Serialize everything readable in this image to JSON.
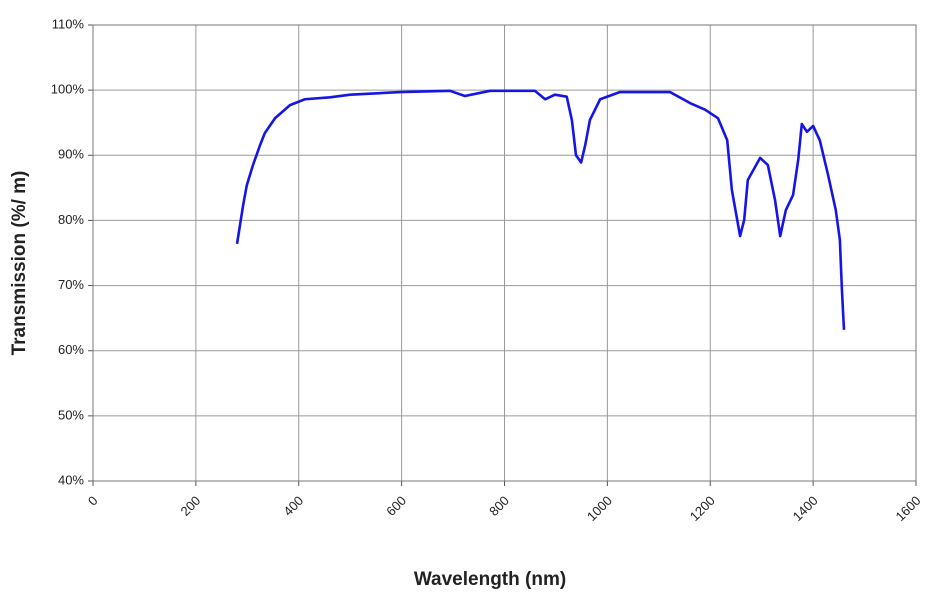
{
  "chart_data": {
    "type": "line",
    "x_label": "Wavelength (nm)",
    "y_label": "Transmission (%/ m)",
    "x": [
      280,
      292,
      299,
      311,
      325,
      334,
      354,
      383,
      412,
      461,
      500,
      597,
      694,
      723,
      772,
      859,
      879,
      898,
      921,
      931,
      939,
      949,
      957,
      966,
      986,
      1024,
      1122,
      1161,
      1190,
      1215,
      1233,
      1242,
      1258,
      1266,
      1273,
      1297,
      1312,
      1326,
      1336,
      1347,
      1361,
      1371,
      1378,
      1388,
      1400,
      1413,
      1429,
      1444,
      1452,
      1456,
      1460
    ],
    "values": [
      76.4,
      82.4,
      85.4,
      88.5,
      91.6,
      93.4,
      95.7,
      97.7,
      98.6,
      98.9,
      99.3,
      99.7,
      99.9,
      99.1,
      99.9,
      99.9,
      98.6,
      99.3,
      99.0,
      95.4,
      90.0,
      88.9,
      91.6,
      95.4,
      98.6,
      99.7,
      99.7,
      98.0,
      97.0,
      95.7,
      92.3,
      84.7,
      77.6,
      80.1,
      86.2,
      89.6,
      88.5,
      83.1,
      77.6,
      81.6,
      83.9,
      89.3,
      94.8,
      93.6,
      94.5,
      92.3,
      87.0,
      81.6,
      77.0,
      69.3,
      63.2
    ],
    "color": "#1515e6",
    "xlim": [
      0,
      1600
    ],
    "xticks": [
      0,
      200,
      400,
      600,
      800,
      1000,
      1200,
      1400,
      1600
    ],
    "ylim": [
      40,
      110
    ],
    "yticks": [
      {
        "value": 40,
        "label": "40%"
      },
      {
        "value": 50,
        "label": "50%"
      },
      {
        "value": 60,
        "label": "60%"
      },
      {
        "value": 70,
        "label": "70%"
      },
      {
        "value": 80,
        "label": "80%"
      },
      {
        "value": 90,
        "label": "90%"
      },
      {
        "value": 100,
        "label": "100%"
      },
      {
        "value": 110,
        "label": "110%"
      }
    ],
    "grid": true
  }
}
